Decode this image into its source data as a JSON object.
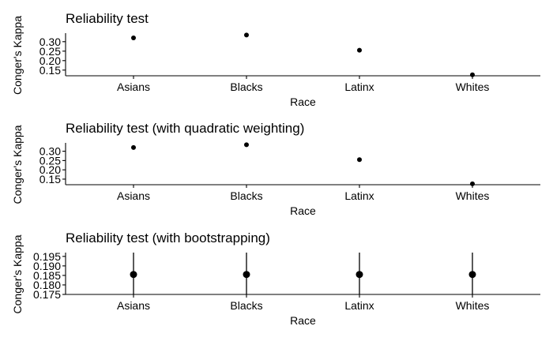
{
  "chart_data": [
    {
      "type": "scatter",
      "title": "Reliability test",
      "xlabel": "Race",
      "ylabel": "Conger's Kappa",
      "categories": [
        "Asians",
        "Blacks",
        "Latinx",
        "Whites"
      ],
      "values": [
        0.32,
        0.335,
        0.255,
        0.125
      ],
      "ylim": [
        0.12,
        0.345
      ],
      "yticks": [
        0.15,
        0.2,
        0.25,
        0.3
      ],
      "ytick_labels": [
        "0.15",
        "0.20",
        "0.25",
        "0.30"
      ],
      "point_size": "small",
      "grid": false
    },
    {
      "type": "scatter",
      "title": "Reliability test (with quadratic weighting)",
      "xlabel": "Race",
      "ylabel": "Conger's Kappa",
      "categories": [
        "Asians",
        "Blacks",
        "Latinx",
        "Whites"
      ],
      "values": [
        0.32,
        0.335,
        0.255,
        0.125
      ],
      "ylim": [
        0.12,
        0.345
      ],
      "yticks": [
        0.15,
        0.2,
        0.25,
        0.3
      ],
      "ytick_labels": [
        "0.15",
        "0.20",
        "0.25",
        "0.30"
      ],
      "point_size": "small",
      "grid": false
    },
    {
      "type": "scatter",
      "title": "Reliability test (with bootstrapping)",
      "xlabel": "Race",
      "ylabel": "Conger's Kappa",
      "categories": [
        "Asians",
        "Blacks",
        "Latinx",
        "Whites"
      ],
      "values": [
        0.1855,
        0.1855,
        0.1855,
        0.1855
      ],
      "lower": [
        0.175,
        0.175,
        0.175,
        0.175
      ],
      "upper": [
        0.197,
        0.197,
        0.197,
        0.197
      ],
      "ylim": [
        0.175,
        0.197
      ],
      "yticks": [
        0.175,
        0.18,
        0.185,
        0.19,
        0.195
      ],
      "ytick_labels": [
        "0.175",
        "0.180",
        "0.185",
        "0.190",
        "0.195"
      ],
      "point_size": "large",
      "error_bars": true,
      "grid": false
    }
  ]
}
